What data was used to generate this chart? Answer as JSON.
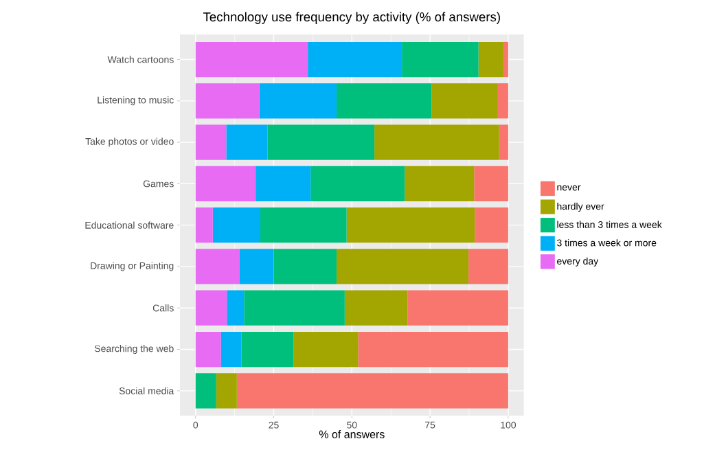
{
  "chart_data": {
    "type": "bar",
    "orientation": "horizontal",
    "stacked": true,
    "title": "Technology use frequency by activity (% of answers)",
    "xlabel": "% of answers",
    "categories": [
      "Watch cartoons",
      "Listening to music",
      "Take photos or video",
      "Games",
      "Educational software",
      "Drawing or Painting",
      "Calls",
      "Searching the web",
      "Social media"
    ],
    "series": [
      {
        "name": "every day",
        "color": "#e76bf3",
        "values": [
          35.9,
          20.4,
          9.8,
          19.2,
          5.5,
          14.1,
          10.0,
          8.1,
          0
        ]
      },
      {
        "name": "3 times a week or more",
        "color": "#00b0f6",
        "values": [
          30.1,
          24.7,
          13.2,
          17.6,
          15.2,
          10.9,
          5.5,
          6.6,
          0
        ]
      },
      {
        "name": "less than 3 times a week",
        "color": "#00bf7d",
        "values": [
          24.5,
          30.4,
          34.2,
          30.1,
          27.6,
          20.1,
          32.2,
          16.6,
          6.6
        ]
      },
      {
        "name": "hardly ever",
        "color": "#a3a500",
        "values": [
          8.0,
          21.2,
          39.9,
          22.2,
          41.0,
          42.2,
          20.1,
          20.7,
          6.6
        ]
      },
      {
        "name": "never",
        "color": "#f8766d",
        "values": [
          1.5,
          3.3,
          2.9,
          10.9,
          10.7,
          12.7,
          32.2,
          48.0,
          86.8
        ]
      }
    ],
    "xlim": [
      -5,
      105
    ],
    "xticks": [
      0,
      25,
      50,
      75,
      100
    ],
    "grid": true,
    "legend": "right"
  }
}
